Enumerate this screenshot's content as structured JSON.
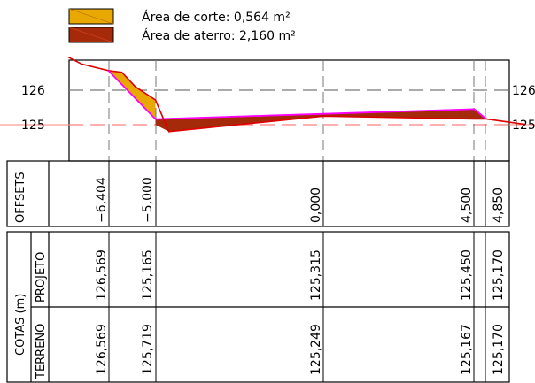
{
  "legend": [
    {
      "label": "Área de corte: 0,564 m²",
      "color": "#e8a800"
    },
    {
      "label": "Área de aterro: 2,160 m²",
      "color": "#a52a0a"
    }
  ],
  "chart_data": {
    "type": "cross-section",
    "y_ticks": [
      126,
      125
    ],
    "y_ticks_right": [
      "126",
      "125"
    ],
    "offsets": [
      -6.404,
      -5.0,
      0.0,
      4.5,
      4.85
    ],
    "terrain_line": [
      [
        -7.6,
        126.96
      ],
      [
        -7.2,
        126.76
      ],
      [
        -6.404,
        126.569
      ],
      [
        -6.0,
        126.52
      ],
      [
        -5.6,
        126.1
      ],
      [
        -5.0,
        125.719
      ],
      [
        -4.6,
        124.8
      ],
      [
        0.0,
        125.249
      ],
      [
        4.5,
        125.167
      ],
      [
        4.85,
        125.17
      ],
      [
        6.0,
        125.01
      ]
    ],
    "project_line": [
      [
        -6.404,
        126.569
      ],
      [
        -5.0,
        125.165
      ],
      [
        0.0,
        125.315
      ],
      [
        4.5,
        125.45
      ],
      [
        4.85,
        125.17
      ]
    ],
    "colors": {
      "terrain": "#dd0000",
      "project": "#ff00ff",
      "cut": "#e8a800",
      "fill": "#a52a0a"
    }
  },
  "table": {
    "offsets_header": "OFFSETS",
    "offsets_values": [
      "−6,404",
      "−5,000",
      "0,000",
      "4,500",
      "4,850"
    ],
    "cotas_header": "COTAS (m)",
    "projeto_header": "PROJETO",
    "terreno_header": "TERRENO",
    "projeto_values": [
      "126,569",
      "125,165",
      "125,315",
      "125,450",
      "125,170"
    ],
    "terreno_values": [
      "126,569",
      "125,719",
      "125,249",
      "125,167",
      "125,170"
    ]
  }
}
